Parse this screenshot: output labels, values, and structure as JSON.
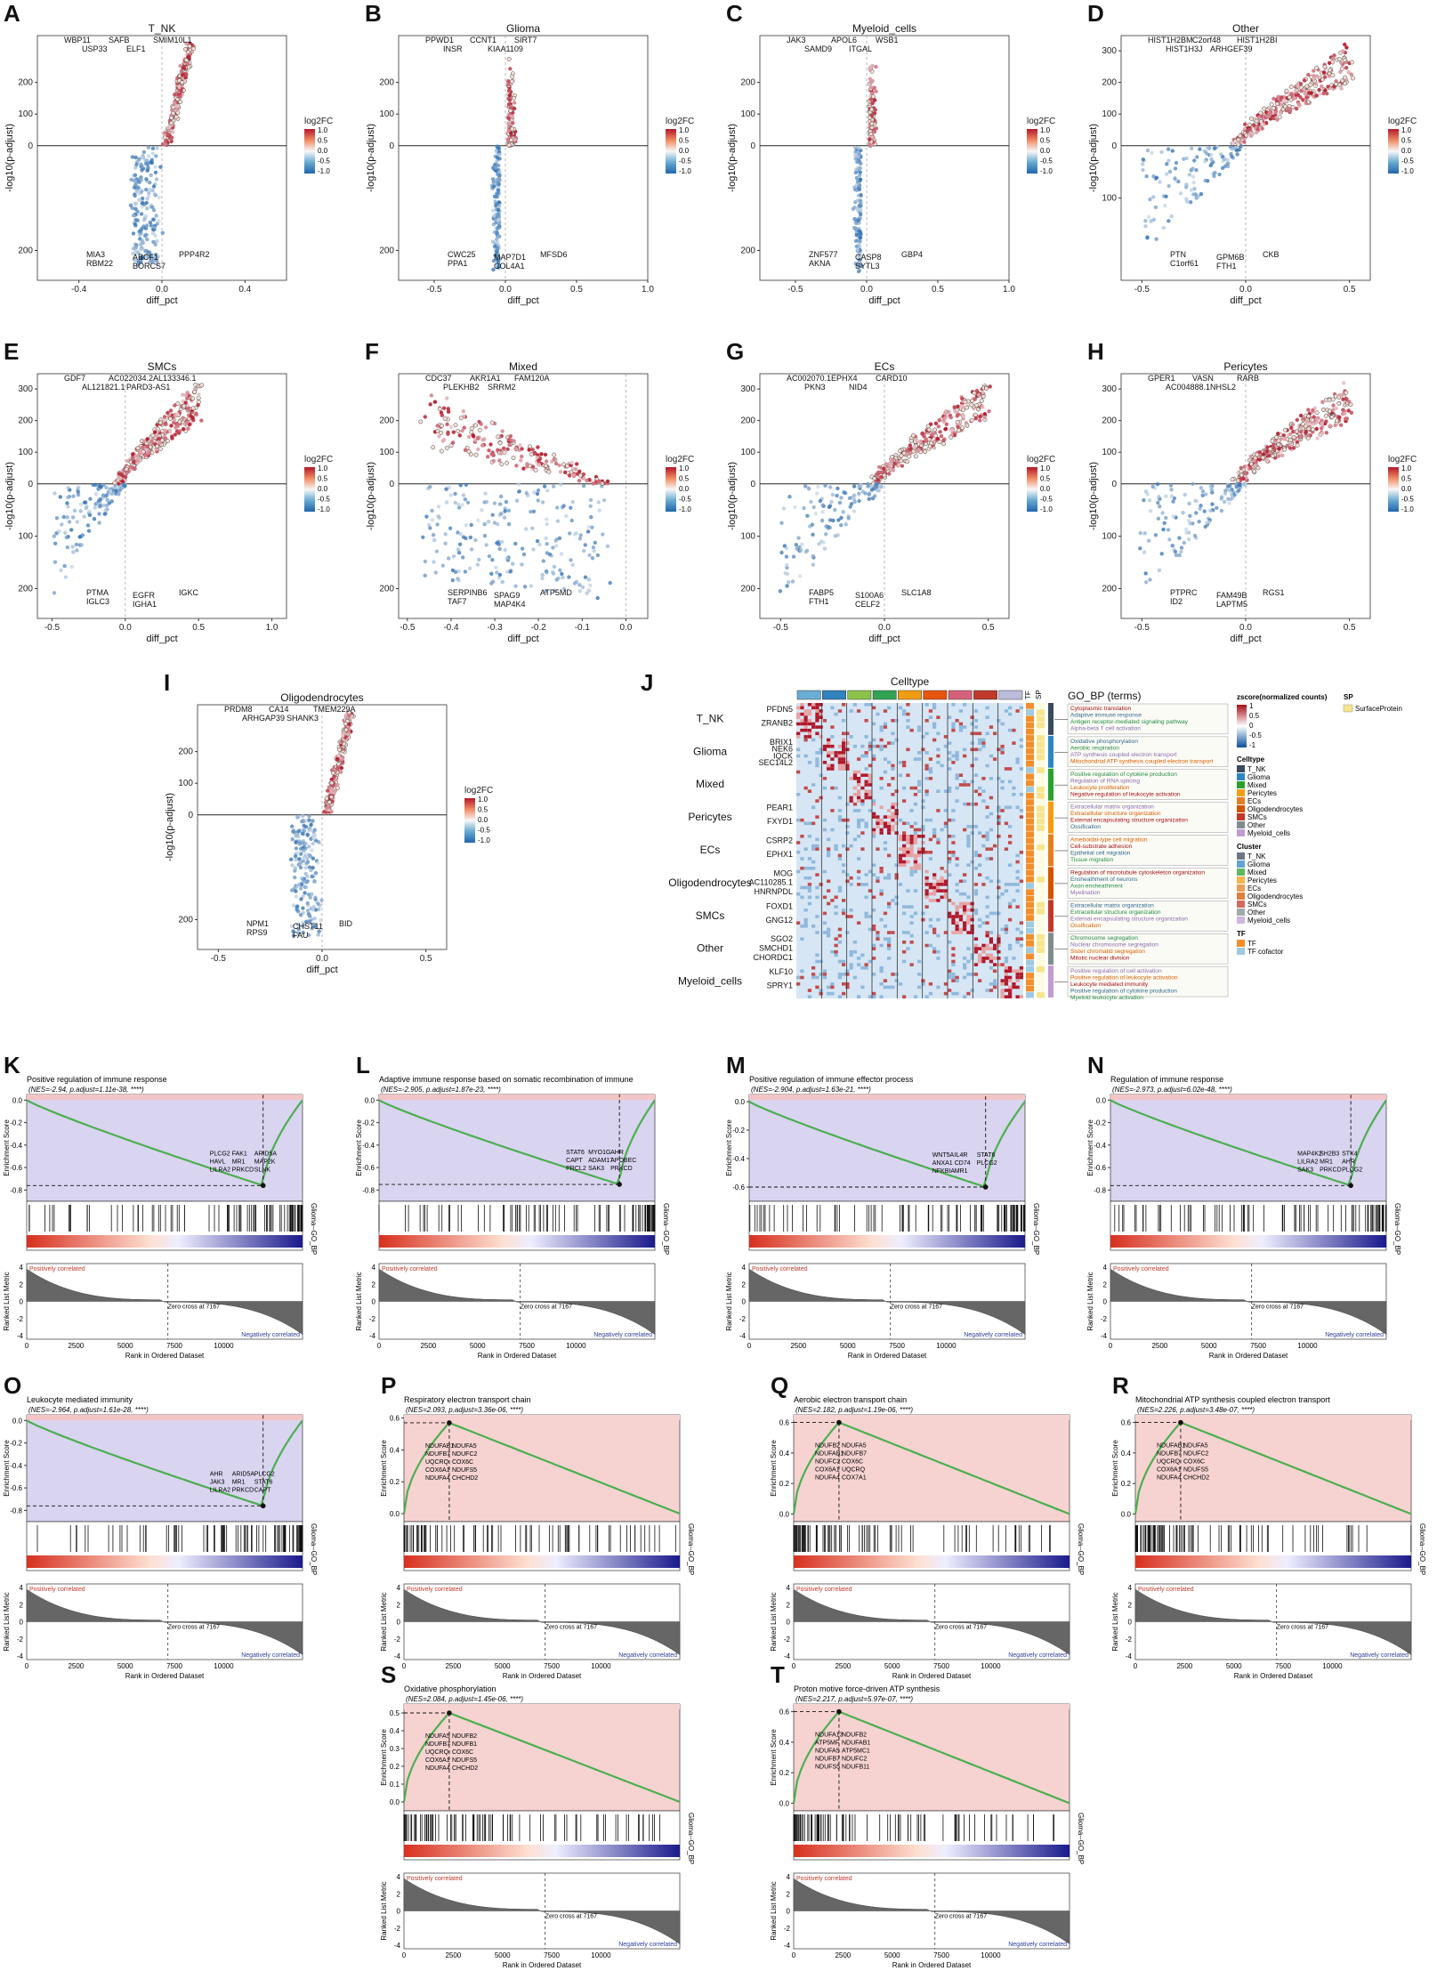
{
  "volcano_common": {
    "xlabel": "diff_pct",
    "ylabel": "-log10(p-adjust)",
    "legend_title": "log2FC",
    "legend_ticks": [
      "1.0",
      "0.5",
      "0.0",
      "-0.5",
      "-1.0"
    ]
  },
  "heatmap": {
    "panel": "J",
    "title": "Celltype",
    "legend_zscore_title": "zscore(normalized counts)",
    "legend_zscore_ticks": [
      "1",
      "0.5",
      "0",
      "-0.5",
      "-1"
    ],
    "legend_sp_title": "SP",
    "legend_sp_item": "SurfaceProtein",
    "legend_celltype_title": "Celltype",
    "legend_cluster_title": "Cluster",
    "legend_tf_title": "TF",
    "legend_tf_items": [
      "TF",
      "TF cofactor"
    ],
    "col_labels": [
      "TF",
      "SP"
    ],
    "go_title": "GO_BP (terms)",
    "celltypes": [
      {
        "name": "T_NK",
        "color": "#3b4a5a"
      },
      {
        "name": "Glioma",
        "color": "#2e86c1"
      },
      {
        "name": "Mixed",
        "color": "#2ca02c"
      },
      {
        "name": "Pericytes",
        "color": "#f39c12"
      },
      {
        "name": "ECs",
        "color": "#e67e22"
      },
      {
        "name": "Oligodendrocytes",
        "color": "#d35400"
      },
      {
        "name": "SMCs",
        "color": "#c0392b"
      },
      {
        "name": "Other",
        "color": "#7f8c8d"
      },
      {
        "name": "Myeloid_cells",
        "color": "#c39bd3"
      }
    ],
    "col_colors": [
      "#6baed6",
      "#3182bd",
      "#8bc34a",
      "#31a354",
      "#f39c12",
      "#e6550d",
      "#d6617b",
      "#c0392b",
      "#bcbddc"
    ],
    "row_groups": [
      {
        "group": "T_NK",
        "genes": [
          "PFDN5",
          "ZRANB2"
        ],
        "terms": [
          "Cytoplasmic translation",
          "Adaptive immune response",
          "Antigen receptor-mediated signaling pathway",
          "Alpha-beta T cell activation"
        ]
      },
      {
        "group": "Glioma",
        "genes": [
          "BRIX1",
          "NEK6",
          "IQCK",
          "SEC14L2"
        ],
        "terms": [
          "Oxidative phosphorylation",
          "Aerobic respiration",
          "ATP synthesis coupled electron transport",
          "Mitochondrial ATP synthesis coupled electron transport"
        ]
      },
      {
        "group": "Mixed",
        "genes": [],
        "terms": [
          "Positive regulation of cytokine production",
          "Regulation of RNA splicing",
          "Leukocyte proliferation",
          "Negative regulation of leukocyte activation"
        ]
      },
      {
        "group": "Pericytes",
        "genes": [
          "PEAR1",
          "FXYD1"
        ],
        "terms": [
          "Extracellular matrix organization",
          "Extracellular structure organization",
          "External encapsulating structure organization",
          "Ossification"
        ]
      },
      {
        "group": "ECs",
        "genes": [
          "CSRP2",
          "EPHX1"
        ],
        "terms": [
          "Ameboidal-type cell migration",
          "Cell-substrate adhesion",
          "Epithelial cell migration",
          "Tissue migration"
        ]
      },
      {
        "group": "Oligodendrocytes",
        "genes": [
          "MOG",
          "AC110285.1",
          "HNRNPDL"
        ],
        "terms": [
          "Regulation of microtubule cytoskeleton organization",
          "Ensheathment of neurons",
          "Axon ensheathment",
          "Myelination"
        ]
      },
      {
        "group": "SMCs",
        "genes": [
          "FOXD1",
          "GNG12"
        ],
        "terms": [
          "Extracellular matrix organization",
          "Extracellular structure organization",
          "External encapsulating structure organization",
          "Ossification"
        ]
      },
      {
        "group": "Other",
        "genes": [
          "SGO2",
          "SMCHD1",
          "CHORDC1"
        ],
        "terms": [
          "Chromosome segregation",
          "Nuclear chromosome segregation",
          "Sister chromatid segregation",
          "Mitotic nuclear division"
        ]
      },
      {
        "group": "Myeloid_cells",
        "genes": [
          "KLF10",
          "SPRY1"
        ],
        "terms": [
          "Positive regulation of cell activation",
          "Positive regulation of leukocyte activation",
          "Leukocyte mediated immunity",
          "Positive regulation of cytokine production",
          "Myeloid leukocyte activation"
        ]
      }
    ]
  },
  "gsea_common": {
    "ylabel_es": "Enrichment Score",
    "ylabel_rank": "Ranked List Metric",
    "xlabel": "Rank in Ordered Dataset",
    "pos_label": "Positively correlated",
    "neg_label": "Negatively correlated",
    "zero_cross": "Zero cross at 7167",
    "side_label": "Glioma--GO_BP",
    "x_ticks": [
      "0",
      "2500",
      "5000",
      "7500",
      "10000"
    ],
    "rank_ticks": [
      "4",
      "2",
      "0",
      "-2",
      "-4"
    ]
  },
  "chart_data": [
    {
      "panel": "A",
      "type": "scatter",
      "title": "T_NK",
      "xlim": [
        -0.6,
        0.6
      ],
      "x_ticks": [
        -0.4,
        0.0,
        0.4
      ],
      "y_ticks_up": [
        100,
        200
      ],
      "y_ticks_down": [
        200
      ],
      "shape": "narrow",
      "genes_top": [
        "WBP11",
        "SAFB",
        "SMIM10L1",
        "USP33",
        "ELF1"
      ],
      "genes_bottom": [
        "MIA3",
        "ABCF1",
        "PPP4R2",
        "RBM22",
        "BORCS7"
      ]
    },
    {
      "panel": "B",
      "type": "scatter",
      "title": "Glioma",
      "xlim": [
        -0.75,
        1.0
      ],
      "x_ticks": [
        -0.5,
        0.0,
        0.5,
        1.0
      ],
      "y_ticks_up": [
        100,
        200
      ],
      "y_ticks_down": [
        200
      ],
      "shape": "spike",
      "genes_top": [
        "PPWD1",
        "CCNT1",
        "SIRT7",
        "INSR",
        "KIAA1109"
      ],
      "genes_bottom": [
        "CWC25",
        "MAP7D1",
        "MFSD6",
        "PPA1",
        "COL4A1"
      ]
    },
    {
      "panel": "C",
      "type": "scatter",
      "title": "Myeloid_cells",
      "xlim": [
        -0.75,
        1.0
      ],
      "x_ticks": [
        -0.5,
        0.0,
        0.5,
        1.0
      ],
      "y_ticks_up": [
        100,
        200
      ],
      "y_ticks_down": [
        200
      ],
      "shape": "spike",
      "genes_top": [
        "JAK3",
        "APOL6",
        "WSB1",
        "SAMD9",
        "ITGAL"
      ],
      "genes_bottom": [
        "ZNF577",
        "CASP8",
        "GBP4",
        "AKNA",
        "SYTL3"
      ]
    },
    {
      "panel": "D",
      "type": "scatter",
      "title": "Other",
      "xlim": [
        -0.6,
        0.6
      ],
      "x_ticks": [
        -0.5,
        0.0,
        0.5
      ],
      "y_ticks_up": [
        100,
        200,
        300
      ],
      "y_ticks_down": [
        100
      ],
      "shape": "wide",
      "genes_top": [
        "HIST1H2BM",
        "C2orf48",
        "HIST1H2BI",
        "HIST1H3J",
        "ARHGEF39"
      ],
      "genes_bottom": [
        "PTN",
        "GPM6B",
        "CKB",
        "C1orf61",
        "FTH1"
      ]
    },
    {
      "panel": "E",
      "type": "scatter",
      "title": "SMCs",
      "xlim": [
        -0.6,
        1.1
      ],
      "x_ticks": [
        -0.5,
        0.0,
        0.5,
        1.0
      ],
      "y_ticks_up": [
        100,
        200,
        300
      ],
      "y_ticks_down": [
        100,
        200
      ],
      "shape": "wide",
      "genes_top": [
        "GDF7",
        "AC022034.2",
        "AL133346.1",
        "AL121821.1",
        "PARD3-AS1"
      ],
      "genes_bottom": [
        "PTMA",
        "EGFR",
        "IGKC",
        "IGLC3",
        "IGHA1"
      ]
    },
    {
      "panel": "F",
      "type": "scatter",
      "title": "Mixed",
      "xlim": [
        -0.52,
        0.05
      ],
      "x_ticks": [
        -0.5,
        -0.4,
        -0.3,
        -0.2,
        -0.1,
        0.0
      ],
      "y_ticks_up": [
        100,
        200
      ],
      "y_ticks_down": [
        200
      ],
      "shape": "mixed",
      "genes_top": [
        "CDC37",
        "AKR1A1",
        "FAM120A",
        "PLEKHB2",
        "SRRM2"
      ],
      "genes_bottom": [
        "SERPINB6",
        "SPAG9",
        "ATP5MD",
        "TAF7",
        "MAP4K4"
      ]
    },
    {
      "panel": "G",
      "type": "scatter",
      "title": "ECs",
      "xlim": [
        -0.6,
        0.6
      ],
      "x_ticks": [
        -0.5,
        0.0,
        0.5
      ],
      "y_ticks_up": [
        100,
        200,
        300
      ],
      "y_ticks_down": [
        100,
        200
      ],
      "shape": "wide",
      "genes_top": [
        "AC002070.1",
        "EPHX4",
        "CARD10",
        "PKN3",
        "NID4"
      ],
      "genes_bottom": [
        "FABP5",
        "S100A6",
        "SLC1A8",
        "FTH1",
        "CELF2"
      ]
    },
    {
      "panel": "H",
      "type": "scatter",
      "title": "Pericytes",
      "xlim": [
        -0.6,
        0.6
      ],
      "x_ticks": [
        -0.5,
        0.0,
        0.5
      ],
      "y_ticks_up": [
        100,
        200,
        300
      ],
      "y_ticks_down": [
        100,
        200
      ],
      "shape": "wide",
      "genes_top": [
        "GPER1",
        "VASN",
        "RARB",
        "AC004888.1",
        "NHSL2"
      ],
      "genes_bottom": [
        "PTPRC",
        "FAM49B",
        "RGS1",
        "ID2",
        "LAPTM5"
      ]
    },
    {
      "panel": "I",
      "type": "scatter",
      "title": "Oligodendrocytes",
      "xlim": [
        -0.6,
        0.6
      ],
      "x_ticks": [
        -0.5,
        0.0,
        0.5
      ],
      "y_ticks_up": [
        100,
        200
      ],
      "y_ticks_down": [
        200
      ],
      "shape": "narrow",
      "genes_top": [
        "PRDM8",
        "CA14",
        "TMEM229A",
        "ARHGAP39",
        "SHANK3"
      ],
      "genes_bottom": [
        "NPM1",
        "CHST11",
        "BID",
        "RPS9",
        "FAU"
      ]
    },
    {
      "panel": "K",
      "type": "line",
      "title": "Positive regulation of immune response",
      "stats": "(NES=-2.94, p.adjust=1.11e-38, ****)",
      "direction": "neg",
      "es_min": -0.9,
      "es_max": 0.05,
      "y_ticks": [
        0.0,
        -0.2,
        -0.4,
        -0.6,
        -0.8
      ],
      "peak_rank": 12000,
      "peak_es": -0.76,
      "genes": [
        "PLCG2",
        "FAK1",
        "ARID5A",
        "HAVL",
        "MR1",
        "MAP2K",
        "LILRA2",
        "PRKCD",
        "SLNK"
      ]
    },
    {
      "panel": "L",
      "type": "line",
      "title": "Adaptive immune response based on somatic recombination of immune",
      "stats": "(NES=-2.905, p.adjust=1.87e-23, ****)",
      "direction": "neg",
      "es_min": -0.9,
      "es_max": 0.05,
      "y_ticks": [
        0.0,
        -0.2,
        -0.4,
        -0.6,
        -0.8
      ],
      "peak_rank": 12200,
      "peak_es": -0.75,
      "genes": [
        "STAT6",
        "MYO1G",
        "AHR",
        "CAPT",
        "ADAM17",
        "APOBEC",
        "PRCL2",
        "SAK3",
        "PRKCD"
      ]
    },
    {
      "panel": "M",
      "type": "line",
      "title": "Positive regulation of immune effector process",
      "stats": "(NES=-2.904, p.adjust=1.63e-21, ****)",
      "direction": "neg",
      "es_min": -0.7,
      "es_max": 0.05,
      "y_ticks": [
        0.0,
        -0.2,
        -0.4,
        -0.6
      ],
      "peak_rank": 12000,
      "peak_es": -0.6,
      "genes": [
        "WNT5A",
        "IL4R",
        "STAT6",
        "ANXA1",
        "CD74",
        "PLCG2",
        "NFKBIA",
        "MR1"
      ]
    },
    {
      "panel": "N",
      "type": "line",
      "title": "Regulation of immune response",
      "stats": "(NES=-2.973, p.adjust=6.02e-48, ****)",
      "direction": "neg",
      "es_min": -0.9,
      "es_max": 0.05,
      "y_ticks": [
        0.0,
        -0.2,
        -0.4,
        -0.6,
        -0.8
      ],
      "peak_rank": 12200,
      "peak_es": -0.76,
      "genes": [
        "MAP4K2",
        "SH2B3",
        "STX4",
        "LILRA2",
        "MR1",
        "AHR",
        "SAK3",
        "PRKCD",
        "PLCG2"
      ]
    },
    {
      "panel": "O",
      "type": "line",
      "title": "Leukocyte mediated immunity",
      "stats": "(NES=-2.964, p.adjust=1.61e-28, ****)",
      "direction": "neg",
      "es_min": -0.9,
      "es_max": 0.05,
      "y_ticks": [
        0.0,
        -0.2,
        -0.4,
        -0.6,
        -0.8
      ],
      "peak_rank": 12000,
      "peak_es": -0.76,
      "genes": [
        "AHR",
        "ARID5A",
        "PLCG2",
        "JAK3",
        "MR1",
        "STAT6",
        "LILRA2",
        "PRKCD",
        "CAPT"
      ]
    },
    {
      "panel": "P",
      "type": "line",
      "title": "Respiratory electron transport chain",
      "stats": "(NES=2.093, p.adjust=3.36e-06, ****)",
      "direction": "pos",
      "es_min": -0.05,
      "es_max": 0.62,
      "y_ticks": [
        0.6,
        0.4,
        0.2,
        0.0
      ],
      "peak_rank": 2300,
      "peak_es": 0.57,
      "genes": [
        "NDUFAB1",
        "NDUFA5",
        "NDUFB7",
        "NDUFC2",
        "UQCRQ",
        "COX6C",
        "COX6A1",
        "NDUFS5",
        "NDUFA4",
        "CHCHD2"
      ]
    },
    {
      "panel": "Q",
      "type": "line",
      "title": "Aerobic electron transport chain",
      "stats": "(NES=2.182, p.adjust=1.19e-06, ****)",
      "direction": "pos",
      "es_min": -0.05,
      "es_max": 0.65,
      "y_ticks": [
        0.6,
        0.4,
        0.2,
        0.0
      ],
      "peak_rank": 2300,
      "peak_es": 0.6,
      "genes": [
        "NDUFB2",
        "NDUFA5",
        "NDUFAB1",
        "NDUFB7",
        "NDUFC2",
        "COX6C",
        "COX6A1",
        "UQCRQ",
        "NDUFA4",
        "COX7A1"
      ]
    },
    {
      "panel": "R",
      "type": "line",
      "title": "Mitochondrial ATP synthesis coupled electron transport",
      "stats": "(NES=2.226, p.adjust=3.48e-07, ****)",
      "direction": "pos",
      "es_min": -0.05,
      "es_max": 0.65,
      "y_ticks": [
        0.6,
        0.4,
        0.2,
        0.0
      ],
      "peak_rank": 2300,
      "peak_es": 0.6,
      "genes": [
        "NDUFAB1",
        "NDUFA5",
        "NDUFB7",
        "NDUFC2",
        "UQCRQ",
        "COX6C",
        "COX6A1",
        "NDUFS5",
        "NDUFA4",
        "CHCHD2"
      ]
    },
    {
      "panel": "S",
      "type": "line",
      "title": "Oxidative phosphorylation",
      "stats": "(NES=2.084, p.adjust=1.45e-06, ****)",
      "direction": "pos",
      "es_min": -0.05,
      "es_max": 0.55,
      "y_ticks": [
        0.5,
        0.4,
        0.3,
        0.2,
        0.1,
        0.0
      ],
      "peak_rank": 2300,
      "peak_es": 0.5,
      "genes": [
        "NDUFA5",
        "NDUFB2",
        "NDUFB7",
        "NDUFB1",
        "UQCRQ",
        "COX6C",
        "COX6A1",
        "NDUFS5",
        "NDUFA4",
        "CHCHD2"
      ]
    },
    {
      "panel": "T",
      "type": "line",
      "title": "Proton motive force-driven ATP synthesis",
      "stats": "(NES=2.217, p.adjust=5.97e-07, ****)",
      "direction": "pos",
      "es_min": -0.05,
      "es_max": 0.65,
      "y_ticks": [
        0.6,
        0.4,
        0.2,
        0.0
      ],
      "peak_rank": 2300,
      "peak_es": 0.6,
      "genes": [
        "NDUFA13",
        "NDUFB2",
        "ATP5MF",
        "NDUFAB1",
        "NDUFA5",
        "ATP5MC1",
        "NDUFB7",
        "NDUFC2",
        "NDUFS5",
        "NDUFB11"
      ]
    }
  ]
}
